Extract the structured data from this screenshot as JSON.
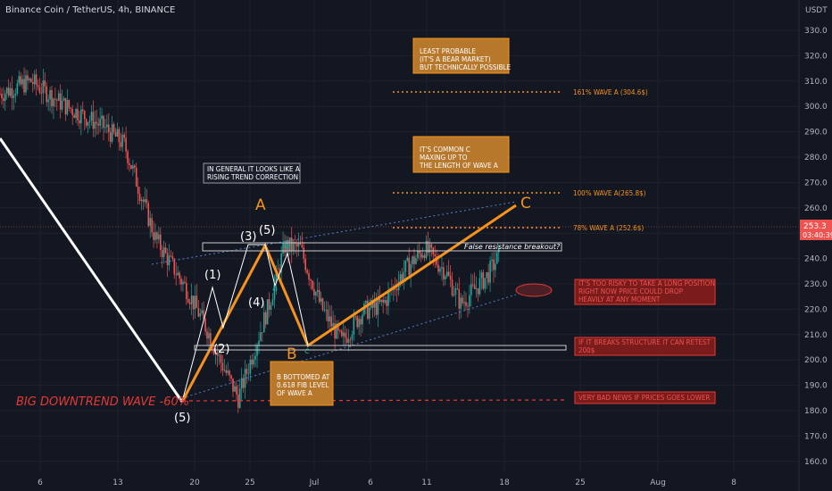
{
  "header": {
    "title": "Binance Coin / TetherUS, 4h, BINANCE"
  },
  "price_axis": {
    "currency": "USDT",
    "ticks": [
      "330.0",
      "320.0",
      "310.0",
      "300.0",
      "290.0",
      "280.0",
      "270.0",
      "260.0",
      "250.0",
      "240.0",
      "230.0",
      "220.0",
      "210.0",
      "200.0",
      "190.0",
      "180.0",
      "170.0",
      "160.0"
    ],
    "current_price": "253.3",
    "countdown": "03:40:39"
  },
  "time_axis": {
    "ticks": [
      "6",
      "13",
      "20",
      "25",
      "Jul",
      "6",
      "11",
      "18",
      "25",
      "Aug",
      "8"
    ]
  },
  "colors": {
    "bg": "#131722",
    "up": "#26a69a",
    "down": "#ef5350",
    "accent": "#f7931a",
    "red": "#e53935",
    "grid": "#1e222d"
  },
  "annotations": {
    "wave_A": "A",
    "wave_B": "B",
    "wave_C": "C",
    "w1": "(1)",
    "w2": "(2)",
    "w3": "(3)",
    "w4": "(4)",
    "w5_top": "(5)",
    "w5_bottom": "(5)",
    "sub_a": "a",
    "sub_b": "b",
    "sub_c": "c",
    "downtrend": "BIG DOWNTREND WAVE -60%",
    "trend_note": [
      "IN GENERAL IT LOOKS LIKE A",
      "RISING TREND CORRECTION"
    ],
    "least_probable": [
      "LEAST PROBABLE",
      "(IT'S A BEAR MARKET)",
      "BUT TECHNICALLY POSSIBLE"
    ],
    "common_c": [
      "IT'S COMMON C",
      "MAXING UP TO",
      "THE LENGTH OF WAVE A"
    ],
    "b_bottom": [
      "B  BOTTOMED AT",
      "0.618 FIB LEVEL",
      "OF WAVE A"
    ],
    "fib_161": "161% WAVE A (304.6$)",
    "fib_100": "100% WAVE A(265.8$)",
    "fib_78": "78% WAVE A (252.6$)",
    "false_breakout": "False resistance breakout?",
    "too_risky": [
      "IT'S TOO RISKY TO TAKE A LONG POSITION",
      "RIGHT NOW PRICE COULD DROP",
      "HEAVILY AT ANY MOMENT"
    ],
    "breaks_structure": [
      "IF IT BREAKS STRUCTURE IT CAN RETEST",
      "200$"
    ],
    "very_bad": "VERY BAD NEWS IF PRICES GOES LOWER"
  },
  "chart_data": {
    "type": "candlestick",
    "title": "Binance Coin / TetherUS, 4h, BINANCE",
    "ylabel": "USDT",
    "ylim": [
      157,
      335
    ],
    "x_tick_labels": [
      "6",
      "13",
      "20",
      "25",
      "Jul",
      "6",
      "11",
      "18",
      "25",
      "Aug",
      "8"
    ],
    "y_tick_labels": [
      "330.0",
      "320.0",
      "310.0",
      "300.0",
      "290.0",
      "280.0",
      "270.0",
      "260.0",
      "250.0",
      "240.0",
      "230.0",
      "220.0",
      "210.0",
      "200.0",
      "190.0",
      "180.0",
      "170.0",
      "160.0"
    ],
    "last_price": 253.3,
    "price_path_anchor_days": [
      0,
      3,
      6,
      10,
      12,
      15,
      18,
      20,
      21,
      23,
      26,
      27.5,
      29,
      31,
      33,
      35,
      37,
      39,
      41,
      43,
      44.5,
      47,
      50
    ],
    "price_path_anchor_closes": [
      305,
      310,
      301,
      292,
      285,
      248,
      228,
      212,
      202,
      185,
      222,
      245,
      244,
      221,
      207,
      219,
      222,
      235,
      244,
      235,
      222,
      233,
      253
    ],
    "levels": {
      "fib_161": 304.6,
      "fib_100": 265.8,
      "fib_78": 252.6,
      "support_structure": 205,
      "low_line": 184
    }
  }
}
